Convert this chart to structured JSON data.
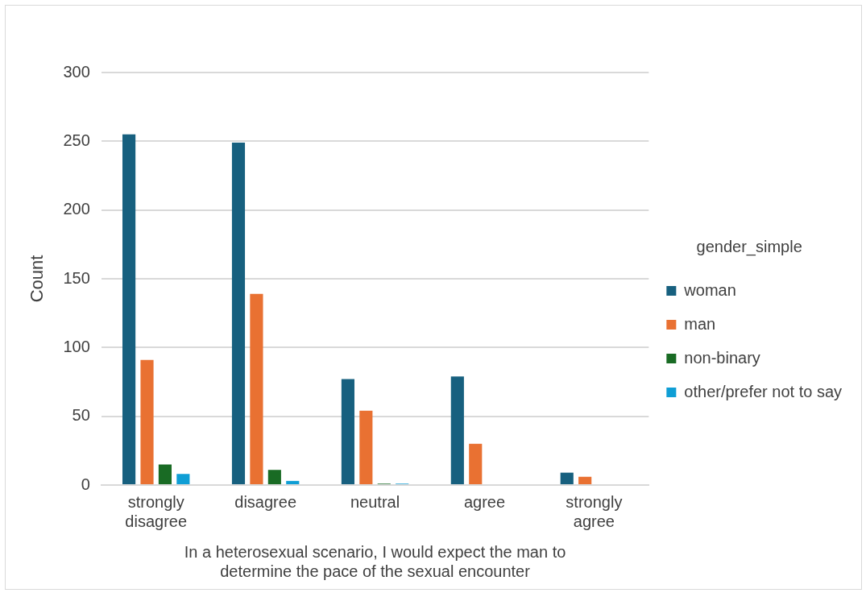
{
  "chart_data": {
    "type": "bar",
    "xlabel": "In a heterosexual scenario, I would expect the man to determine the pace of the sexual encounter",
    "ylabel": "Count",
    "legend_title": "gender_simple",
    "categories": [
      [
        "strongly",
        "disagree"
      ],
      "disagree",
      "neutral",
      "agree",
      [
        "strongly",
        "agree"
      ]
    ],
    "series": [
      {
        "name": "woman",
        "color": "#17607f",
        "values": [
          255,
          249,
          77,
          79,
          9
        ]
      },
      {
        "name": "man",
        "color": "#e97132",
        "values": [
          91,
          139,
          54,
          30,
          6
        ]
      },
      {
        "name": "non-binary",
        "color": "#196b24",
        "values": [
          15,
          11,
          1,
          0,
          0
        ]
      },
      {
        "name": "other/prefer not to say",
        "color": "#0f9ed5",
        "values": [
          8,
          3,
          1,
          0,
          0
        ]
      }
    ],
    "ylim": [
      0,
      300
    ],
    "yticks": [
      0,
      50,
      100,
      150,
      200,
      250,
      300
    ],
    "grid": "y",
    "legend": "right"
  }
}
